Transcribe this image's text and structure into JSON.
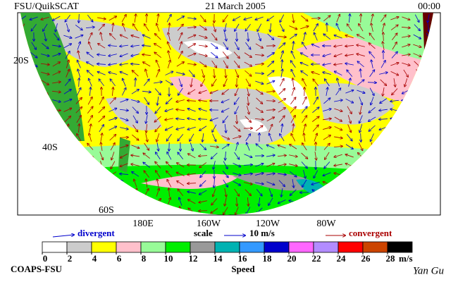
{
  "header": {
    "left": "FSU/QuikSCAT",
    "center": "21 March 2005",
    "right": "00:00"
  },
  "map": {
    "lat_labels": [
      "20S",
      "40S",
      "60S"
    ],
    "lon_labels": [
      "180E",
      "160W",
      "120W",
      "80W"
    ]
  },
  "legend": {
    "divergent": "divergent",
    "scale": "scale",
    "scale_value": "10 m/s",
    "convergent": "convergent"
  },
  "colorbar": {
    "colors": [
      "#ffffff",
      "#cccccc",
      "#ffff00",
      "#ffc0cb",
      "#98fb98",
      "#00ee00",
      "#999999",
      "#00b2b2",
      "#3399ff",
      "#0000cc",
      "#ff66ff",
      "#b28cff",
      "#ff0000",
      "#cc4400",
      "#000000"
    ],
    "ticks": [
      0,
      2,
      4,
      6,
      8,
      10,
      12,
      14,
      16,
      18,
      20,
      22,
      24,
      26,
      28
    ],
    "unit": "m/s",
    "label": "Speed"
  },
  "footer": {
    "left": "COAPS-FSU",
    "right": "Yan Gu"
  }
}
